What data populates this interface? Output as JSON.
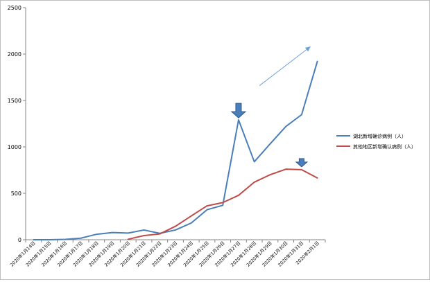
{
  "chart_data": {
    "type": "line",
    "title": "",
    "xlabel": "",
    "ylabel": "",
    "ylim": [
      0,
      2500
    ],
    "yticks": [
      0,
      500,
      1000,
      1500,
      2000,
      2500
    ],
    "grid": false,
    "legend_position": "right",
    "categories": [
      "2020年1月14日",
      "2020年1月15日",
      "2020年1月16日",
      "2020年1月17日",
      "2020年1月18日",
      "2020年1月19日",
      "2020年1月20日",
      "2020年1月21日",
      "2020年1月22日",
      "2020年1月23日",
      "2020年1月24日",
      "2020年1月25日",
      "2020年1月26日",
      "2020年1月27日",
      "2020年1月28日",
      "2020年1月29日",
      "2020年1月30日",
      "2020年1月31日",
      "2020年2月1日"
    ],
    "series": [
      {
        "name": "湖北新增确诊病例（人）",
        "color": "#4a7ebb",
        "values": [
          0,
          0,
          4,
          17,
          59,
          77,
          72,
          105,
          69,
          105,
          180,
          323,
          371,
          1291,
          840,
          1032,
          1220,
          1347,
          1921
        ]
      },
      {
        "name": "其他地区新增确认病例（人）",
        "color": "#be4b48",
        "values": [
          null,
          null,
          null,
          null,
          null,
          null,
          5,
          45,
          62,
          145,
          256,
          365,
          400,
          478,
          620,
          700,
          760,
          755,
          665
        ]
      }
    ],
    "annotations": [
      {
        "kind": "down-arrow",
        "category": "2020年1月27日",
        "value": 1290,
        "color": "#4a7ebb"
      },
      {
        "kind": "down-arrow",
        "category": "2020年1月31日",
        "value": 762,
        "color": "#4a7ebb"
      },
      {
        "kind": "trend-arrow",
        "from": [
          "2020年1月30日",
          1660
        ],
        "to": [
          "2020年2月1日",
          2080
        ],
        "color": "#6a9fd8"
      }
    ]
  }
}
